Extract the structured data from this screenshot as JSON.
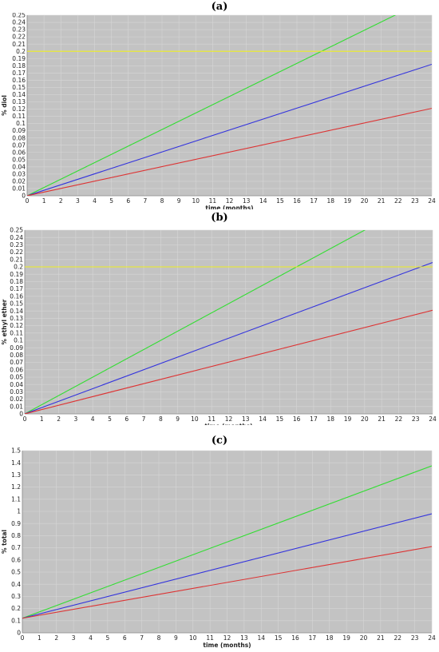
{
  "chart_data": [
    {
      "type": "line",
      "panel_label": "(a)",
      "xlabel": "time (months)",
      "ylabel": "% diol",
      "xlim": [
        0,
        24
      ],
      "ylim": [
        0,
        0.25
      ],
      "x_ticks": [
        "0",
        "1",
        "2",
        "3",
        "4",
        "5",
        "6",
        "7",
        "8",
        "9",
        "10",
        "11",
        "12",
        "13",
        "14",
        "15",
        "16",
        "17",
        "18",
        "19",
        "20",
        "21",
        "22",
        "23",
        "24"
      ],
      "y_ticks": [
        "0",
        "0.01",
        "0.02",
        "0.03",
        "0.04",
        "0.05",
        "0.06",
        "0.07",
        "0.08",
        "0.09",
        "0.1",
        "0.11",
        "0.12",
        "0.13",
        "0.14",
        "0.15",
        "0.16",
        "0.17",
        "0.18",
        "0.19",
        "0.2",
        "0.21",
        "0.22",
        "0.23",
        "0.24",
        "0.25"
      ],
      "grid": true,
      "plot_background": "#c3c3c3",
      "series": [
        {
          "color": "#33dd33",
          "x": [
            0,
            24
          ],
          "y": [
            0,
            0.275
          ]
        },
        {
          "color": "#3333dd",
          "x": [
            0,
            24
          ],
          "y": [
            0,
            0.182
          ]
        },
        {
          "color": "#dd3333",
          "x": [
            0,
            24
          ],
          "y": [
            0,
            0.121
          ]
        },
        {
          "color": "#eeee22",
          "x": [
            0,
            24
          ],
          "y": [
            0.2,
            0.2
          ]
        }
      ]
    },
    {
      "type": "line",
      "panel_label": "(b)",
      "xlabel": "time (months)",
      "ylabel": "% ethyl ether",
      "xlim": [
        0,
        24
      ],
      "ylim": [
        0,
        0.25
      ],
      "x_ticks": [
        "0",
        "1",
        "2",
        "3",
        "4",
        "5",
        "6",
        "7",
        "8",
        "9",
        "10",
        "11",
        "12",
        "13",
        "14",
        "15",
        "16",
        "17",
        "18",
        "19",
        "20",
        "21",
        "22",
        "23",
        "24"
      ],
      "y_ticks": [
        "0",
        "0.01",
        "0.02",
        "0.03",
        "0.04",
        "0.05",
        "0.06",
        "0.07",
        "0.08",
        "0.09",
        "0.1",
        "0.11",
        "0.12",
        "0.13",
        "0.14",
        "0.15",
        "0.16",
        "0.17",
        "0.18",
        "0.19",
        "0.2",
        "0.21",
        "0.22",
        "0.23",
        "0.24",
        "0.25"
      ],
      "grid": true,
      "plot_background": "#c3c3c3",
      "series": [
        {
          "color": "#33dd33",
          "x": [
            0,
            24
          ],
          "y": [
            0,
            0.3
          ]
        },
        {
          "color": "#3333dd",
          "x": [
            0,
            24
          ],
          "y": [
            0,
            0.206
          ]
        },
        {
          "color": "#dd3333",
          "x": [
            0,
            24
          ],
          "y": [
            0,
            0.141
          ]
        },
        {
          "color": "#eeee22",
          "x": [
            0,
            24
          ],
          "y": [
            0.2,
            0.2
          ]
        }
      ]
    },
    {
      "type": "line",
      "panel_label": "(c)",
      "xlabel": "time (months)",
      "ylabel": "% total",
      "xlim": [
        0,
        24
      ],
      "ylim": [
        0,
        1.5
      ],
      "x_ticks": [
        "0",
        "1",
        "2",
        "3",
        "4",
        "5",
        "6",
        "7",
        "8",
        "9",
        "10",
        "11",
        "12",
        "13",
        "14",
        "15",
        "16",
        "17",
        "18",
        "19",
        "20",
        "21",
        "22",
        "23",
        "24"
      ],
      "y_ticks": [
        "0",
        "0.1",
        "0.2",
        "0.3",
        "0.4",
        "0.5",
        "0.6",
        "0.7",
        "0.8",
        "0.9",
        "1",
        "1.1",
        "1.2",
        "1.3",
        "1.4",
        "1.5"
      ],
      "grid": true,
      "plot_background": "#c3c3c3",
      "series": [
        {
          "color": "#33dd33",
          "x": [
            0,
            24
          ],
          "y": [
            0.12,
            1.375
          ]
        },
        {
          "color": "#3333dd",
          "x": [
            0,
            24
          ],
          "y": [
            0.12,
            0.98
          ]
        },
        {
          "color": "#dd3333",
          "x": [
            0,
            24
          ],
          "y": [
            0.12,
            0.71
          ]
        }
      ]
    }
  ]
}
